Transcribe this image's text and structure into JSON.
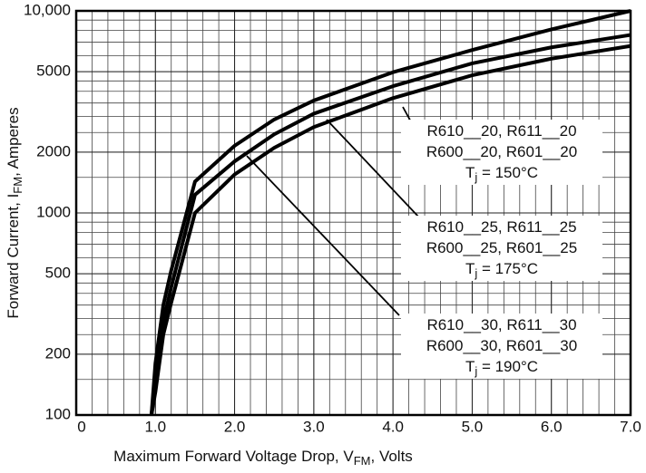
{
  "chart_data": {
    "type": "line",
    "xlabel": [
      "Maximum Forward Voltage Drop, V",
      "FM",
      ", Volts"
    ],
    "ylabel": [
      "Forward Current, I",
      "FM",
      ", Amperes"
    ],
    "x": [
      0.95,
      1.0,
      1.1,
      1.2,
      1.5,
      2.0,
      2.5,
      3.0,
      4.0,
      5.0,
      6.0,
      7.0
    ],
    "series": [
      {
        "color": "#000000",
        "values": [
          100,
          180,
          350,
          520,
          1430,
          2150,
          2900,
          3600,
          4970,
          6400,
          8100,
          10000
        ]
      },
      {
        "color": "#000000",
        "values": [
          100,
          150,
          290,
          430,
          1230,
          1800,
          2450,
          3100,
          4240,
          5500,
          6600,
          7600
        ]
      },
      {
        "color": "#000000",
        "values": [
          100,
          130,
          250,
          360,
          1000,
          1550,
          2100,
          2660,
          3700,
          4800,
          5800,
          6700
        ]
      }
    ],
    "xlim": [
      0,
      7
    ],
    "xticks": [
      0,
      {
        "value": 1,
        "label": "1.0"
      },
      {
        "value": 2,
        "label": "2.0"
      },
      {
        "value": 3,
        "label": "3.0"
      },
      {
        "value": 4,
        "label": "4.0"
      },
      {
        "value": 5,
        "label": "5.0"
      },
      {
        "value": 6,
        "label": "6.0"
      },
      {
        "value": 7,
        "label": "7.0"
      }
    ],
    "ylim": [
      100,
      10000
    ],
    "log_y": true,
    "yticks": [
      100,
      200,
      500,
      1000,
      2000,
      5000,
      {
        "value": 10000,
        "label": "10,000"
      }
    ],
    "grid": true,
    "annotations": [
      {
        "lines": [
          [
            "R610__20, R611__20"
          ],
          [
            "R600__20, R601__20"
          ],
          [
            "T",
            "j",
            " = 150°C"
          ]
        ]
      },
      {
        "lines": [
          [
            "R610__25, R611__25"
          ],
          [
            "R600__25, R601__25"
          ],
          [
            "T",
            "j",
            " = 175°C"
          ]
        ]
      },
      {
        "lines": [
          [
            "R610__30, R611__30"
          ],
          [
            "R600__30, R601__30"
          ],
          [
            "T",
            "j",
            " = 190°C"
          ]
        ]
      }
    ]
  }
}
